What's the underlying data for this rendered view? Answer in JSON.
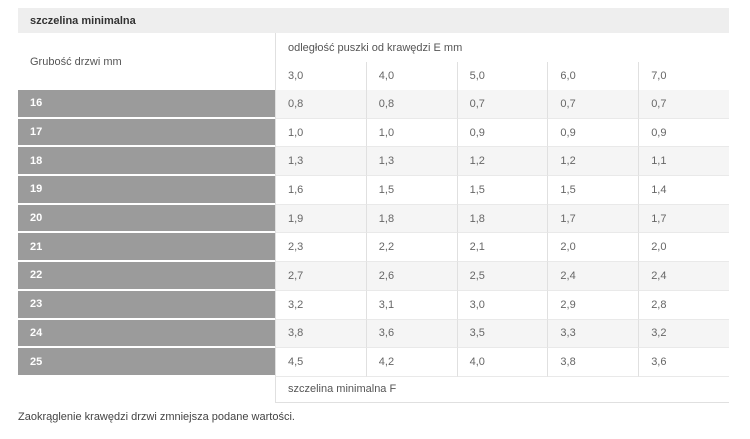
{
  "table": {
    "title": "szczelina minimalna",
    "row_header_label": "Grubość drzwi mm",
    "col_group_label": "odległość puszki od krawędzi E mm",
    "col_headers": [
      "3,0",
      "4,0",
      "5,0",
      "6,0",
      "7,0"
    ],
    "rows": [
      {
        "label": "16",
        "values": [
          "0,8",
          "0,8",
          "0,7",
          "0,7",
          "0,7"
        ]
      },
      {
        "label": "17",
        "values": [
          "1,0",
          "1,0",
          "0,9",
          "0,9",
          "0,9"
        ]
      },
      {
        "label": "18",
        "values": [
          "1,3",
          "1,3",
          "1,2",
          "1,2",
          "1,1"
        ]
      },
      {
        "label": "19",
        "values": [
          "1,6",
          "1,5",
          "1,5",
          "1,5",
          "1,4"
        ]
      },
      {
        "label": "20",
        "values": [
          "1,9",
          "1,8",
          "1,8",
          "1,7",
          "1,7"
        ]
      },
      {
        "label": "21",
        "values": [
          "2,3",
          "2,2",
          "2,1",
          "2,0",
          "2,0"
        ]
      },
      {
        "label": "22",
        "values": [
          "2,7",
          "2,6",
          "2,5",
          "2,4",
          "2,4"
        ]
      },
      {
        "label": "23",
        "values": [
          "3,2",
          "3,1",
          "3,0",
          "2,9",
          "2,8"
        ]
      },
      {
        "label": "24",
        "values": [
          "3,8",
          "3,6",
          "3,5",
          "3,3",
          "3,2"
        ]
      },
      {
        "label": "25",
        "values": [
          "4,5",
          "4,2",
          "4,0",
          "3,8",
          "3,6"
        ]
      }
    ],
    "footer_label": "szczelina minimalna F"
  },
  "note": "Zaokrąglenie krawędzi drzwi zmniejsza podane wartości.",
  "colors": {
    "title_bar_bg": "#eeeeee",
    "row_label_bg": "#9b9b9b",
    "alt_row_bg": "#f5f5f5",
    "border": "#e0e0e0",
    "value_text": "#666666"
  }
}
